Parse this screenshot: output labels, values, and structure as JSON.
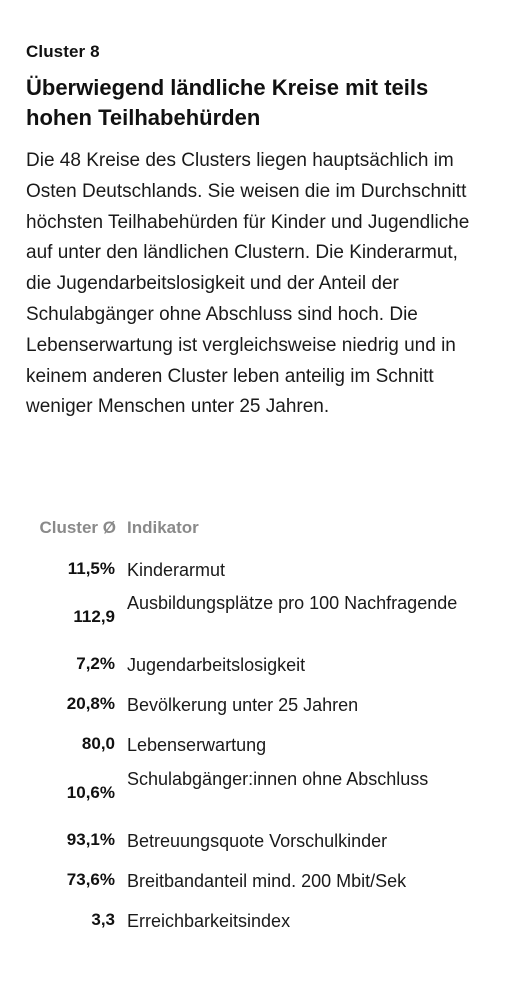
{
  "cluster_label": "Cluster 8",
  "headline": "Überwiegend ländliche Kreise mit teils hohen Teilhabehürden",
  "description": "Die 48 Kreise des Clusters liegen hauptsächlich im Osten Deutschlands. Sie weisen die im Durchschnitt höchsten Teilhabehürden für Kinder und Jugendliche auf unter den ländlichen Clustern. Die Kinderarmut, die Jugendarbeitslosigkeit und der Anteil der Schulabgänger ohne Abschluss sind hoch. Die Lebenserwartung ist vergleichsweise niedrig und in keinem anderen Cluster leben anteilig im Schnitt weniger Menschen unter 25 Jahren.",
  "table": {
    "header_value": "Cluster Ø",
    "header_label": "Indikator",
    "rows": [
      {
        "value": "11,5%",
        "label": "Kinderarmut"
      },
      {
        "value": "112,9",
        "label": "Ausbildungsplätze pro 100 Nachfragende"
      },
      {
        "value": "7,2%",
        "label": "Jugendarbeitslosigkeit"
      },
      {
        "value": "20,8%",
        "label": "Bevölkerung unter 25 Jahren"
      },
      {
        "value": "80,0",
        "label": "Lebenserwartung"
      },
      {
        "value": "10,6%",
        "label": "Schulabgänger:innen ohne Abschluss"
      },
      {
        "value": "93,1%",
        "label": "Betreuungsquote Vorschulkinder"
      },
      {
        "value": "73,6%",
        "label": "Breitbandanteil mind. 200 Mbit/Sek"
      },
      {
        "value": "3,3",
        "label": "Erreichbarkeitsindex"
      }
    ]
  }
}
